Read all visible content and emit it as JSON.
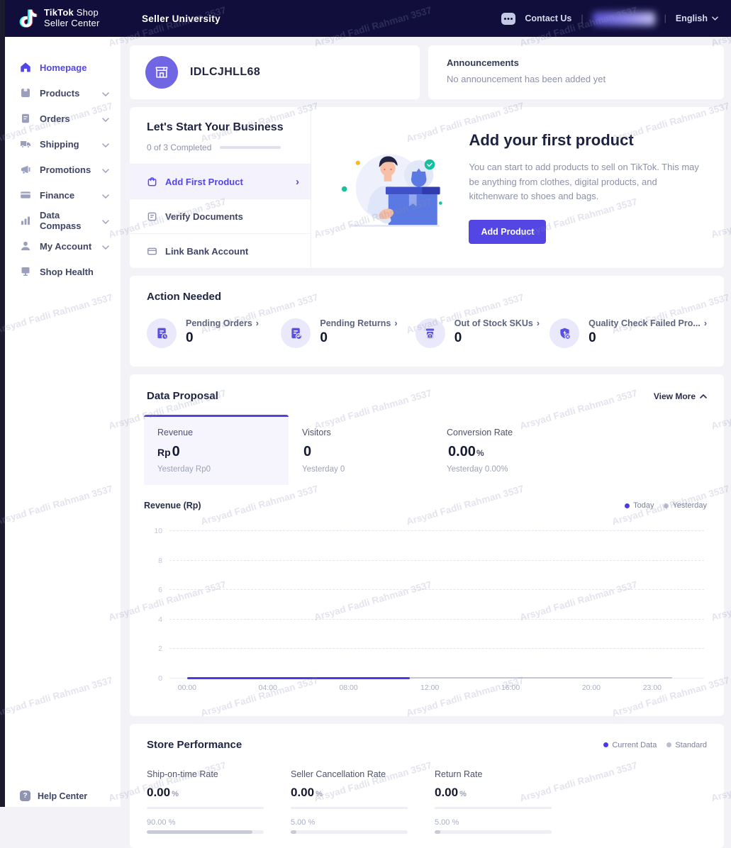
{
  "navbar": {
    "brand_bold": "TikTok",
    "brand_rest": "Shop",
    "brand_line2": "Seller Center",
    "title": "Seller University",
    "contact_us": "Contact Us",
    "divider": "|",
    "language": "English"
  },
  "sidebar": {
    "items": [
      {
        "label": "Homepage",
        "icon": "home",
        "active": true,
        "has_chevron": false
      },
      {
        "label": "Products",
        "icon": "products",
        "active": false,
        "has_chevron": true
      },
      {
        "label": "Orders",
        "icon": "orders",
        "active": false,
        "has_chevron": true
      },
      {
        "label": "Shipping",
        "icon": "shipping",
        "active": false,
        "has_chevron": true
      },
      {
        "label": "Promotions",
        "icon": "promotions",
        "active": false,
        "has_chevron": true
      },
      {
        "label": "Finance",
        "icon": "finance",
        "active": false,
        "has_chevron": true
      },
      {
        "label": "Data Compass",
        "icon": "data-compass",
        "active": false,
        "has_chevron": true
      },
      {
        "label": "My Account",
        "icon": "my-account",
        "active": false,
        "has_chevron": true
      },
      {
        "label": "Shop Health",
        "icon": "shop-health",
        "active": false,
        "has_chevron": false
      }
    ],
    "help_label": "Help Center"
  },
  "shop": {
    "name": "IDLCJHLL68"
  },
  "announcements": {
    "title": "Announcements",
    "empty_text": "No announcement has been added yet"
  },
  "onboarding": {
    "title": "Let's Start Your Business",
    "progress_text": "0 of 3 Completed",
    "steps": [
      {
        "label": "Add First Product",
        "active": true
      },
      {
        "label": "Verify Documents",
        "active": false
      },
      {
        "label": "Link Bank Account",
        "active": false
      }
    ]
  },
  "promo": {
    "heading": "Add your first product",
    "description": "You can start to add products to sell on TikTok. This may be anything from clothes, digital products, and kitchenware to shoes and bags.",
    "button_label": "Add Product"
  },
  "action_needed": {
    "title": "Action Needed",
    "items": [
      {
        "label": "Pending Orders",
        "value": "0",
        "icon": "pending-orders"
      },
      {
        "label": "Pending Returns",
        "value": "0",
        "icon": "pending-returns"
      },
      {
        "label": "Out of Stock SKUs",
        "value": "0",
        "icon": "out-of-stock"
      },
      {
        "label": "Quality Check Failed Pro...",
        "value": "0",
        "icon": "quality-check-failed"
      }
    ]
  },
  "data_proposal": {
    "title": "Data Proposal",
    "view_more_label": "View More",
    "tabs": [
      {
        "label": "Revenue",
        "value_prefix": "Rp",
        "value": "0",
        "value_suffix": "",
        "yesterday": "Yesterday Rp0",
        "active": true
      },
      {
        "label": "Visitors",
        "value_prefix": "",
        "value": "0",
        "value_suffix": "",
        "yesterday": "Yesterday 0",
        "active": false
      },
      {
        "label": "Conversion Rate",
        "value_prefix": "",
        "value": "0.00",
        "value_suffix": "%",
        "yesterday": "Yesterday 0.00%",
        "active": false
      }
    ]
  },
  "chart_data": {
    "type": "line",
    "title": "Revenue (Rp)",
    "legend": [
      "Today",
      "Yesterday"
    ],
    "legend_colors": [
      "#4b3be5",
      "#b9bdcf"
    ],
    "ylim": [
      0,
      10
    ],
    "y_ticks_desc": [
      "10",
      "8",
      "6",
      "4",
      "2",
      "0"
    ],
    "x_ticks": [
      "00:00",
      "04:00",
      "08:00",
      "12:00",
      "16:00",
      "20:00",
      "23:00"
    ],
    "grid": "horizontal-dashed",
    "legend_position": "top-right",
    "series": [
      {
        "name": "Today",
        "hours_span": [
          0,
          11
        ],
        "constant_value": 0,
        "width_pct": 41.6
      },
      {
        "name": "Yesterday",
        "hours_span": [
          0,
          24
        ],
        "constant_value": 0,
        "width_pct": 90.7
      }
    ]
  },
  "store_performance": {
    "title": "Store Performance",
    "legend": [
      "Current Data",
      "Standard"
    ],
    "legend_colors": [
      "#4b3be5",
      "#b9bdcf"
    ],
    "metrics": [
      {
        "label": "Ship-on-time Rate",
        "value": "0.00",
        "unit": "%",
        "current_pct": 0,
        "standard_text": "90.00 %",
        "standard_pct": 90
      },
      {
        "label": "Seller Cancellation Rate",
        "value": "0.00",
        "unit": "%",
        "current_pct": 0,
        "standard_text": "5.00 %",
        "standard_pct": 5
      },
      {
        "label": "Return Rate",
        "value": "0.00",
        "unit": "%",
        "current_pct": 0,
        "standard_text": "5.00 %",
        "standard_pct": 5
      }
    ]
  },
  "icons": {
    "chevron_right": "›",
    "help_glyph": "?"
  },
  "watermark": {
    "text": "Arsyad Fadli Rahman 3537"
  },
  "colors": {
    "accent": "#5246e5",
    "navbar_bg": "#110e3c",
    "page_bg": "#f2f2f7",
    "today_line": "#4b3be5",
    "yesterday_line": "#c3c7d8"
  }
}
